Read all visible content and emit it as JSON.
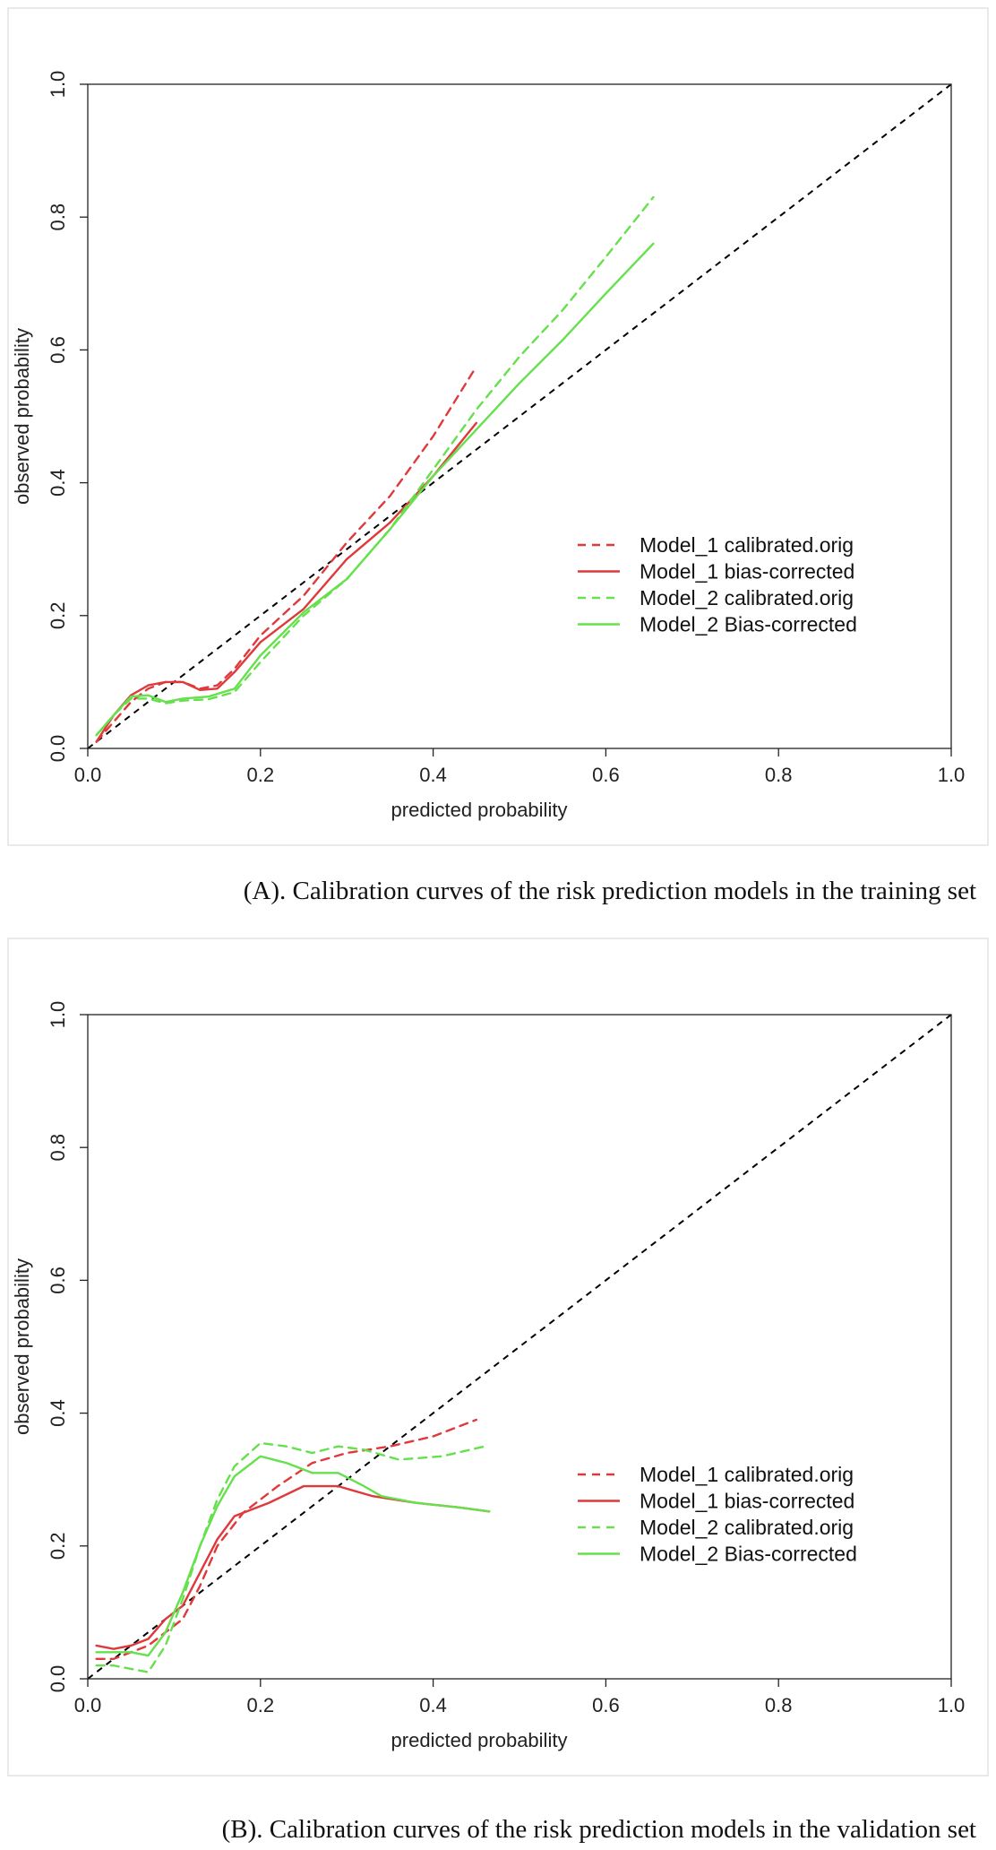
{
  "chart_data": [
    {
      "type": "line",
      "panel": "A",
      "caption": "(A). Calibration curves of the risk prediction models in the training set",
      "xlabel": "predicted probability",
      "ylabel": "observed probability",
      "xlim": [
        0,
        1
      ],
      "ylim": [
        0,
        1
      ],
      "xticks": [
        "0.0",
        "0.2",
        "0.4",
        "0.6",
        "0.8",
        "1.0"
      ],
      "yticks": [
        "0.0",
        "0.2",
        "0.4",
        "0.6",
        "0.8",
        "1.0"
      ],
      "legend_position": "right",
      "reference": {
        "name": "ideal",
        "color": "#000000",
        "dash": true,
        "points": [
          [
            0,
            0
          ],
          [
            1,
            1
          ]
        ]
      },
      "series": [
        {
          "name": "Model_1 calibrated.orig",
          "color": "#e0393b",
          "dash": true,
          "points": [
            [
              0.01,
              0.01
            ],
            [
              0.03,
              0.04
            ],
            [
              0.05,
              0.07
            ],
            [
              0.07,
              0.09
            ],
            [
              0.09,
              0.1
            ],
            [
              0.11,
              0.1
            ],
            [
              0.13,
              0.09
            ],
            [
              0.15,
              0.095
            ],
            [
              0.17,
              0.12
            ],
            [
              0.2,
              0.17
            ],
            [
              0.25,
              0.23
            ],
            [
              0.3,
              0.31
            ],
            [
              0.35,
              0.38
            ],
            [
              0.4,
              0.47
            ],
            [
              0.45,
              0.575
            ]
          ]
        },
        {
          "name": "Model_1 bias-corrected",
          "color": "#e0393b",
          "dash": false,
          "points": [
            [
              0.01,
              0.01
            ],
            [
              0.03,
              0.05
            ],
            [
              0.05,
              0.08
            ],
            [
              0.07,
              0.095
            ],
            [
              0.09,
              0.1
            ],
            [
              0.11,
              0.1
            ],
            [
              0.13,
              0.088
            ],
            [
              0.15,
              0.09
            ],
            [
              0.17,
              0.115
            ],
            [
              0.2,
              0.16
            ],
            [
              0.25,
              0.21
            ],
            [
              0.3,
              0.285
            ],
            [
              0.35,
              0.34
            ],
            [
              0.4,
              0.41
            ],
            [
              0.45,
              0.49
            ]
          ]
        },
        {
          "name": "Model_2 calibrated.orig",
          "color": "#66e04d",
          "dash": true,
          "points": [
            [
              0.01,
              0.02
            ],
            [
              0.03,
              0.05
            ],
            [
              0.05,
              0.075
            ],
            [
              0.07,
              0.075
            ],
            [
              0.09,
              0.068
            ],
            [
              0.11,
              0.072
            ],
            [
              0.14,
              0.074
            ],
            [
              0.17,
              0.085
            ],
            [
              0.2,
              0.13
            ],
            [
              0.25,
              0.2
            ],
            [
              0.3,
              0.255
            ],
            [
              0.35,
              0.33
            ],
            [
              0.4,
              0.42
            ],
            [
              0.45,
              0.51
            ],
            [
              0.5,
              0.59
            ],
            [
              0.55,
              0.66
            ],
            [
              0.6,
              0.74
            ],
            [
              0.655,
              0.83
            ]
          ]
        },
        {
          "name": "Model_2 Bias-corrected",
          "color": "#66e04d",
          "dash": false,
          "points": [
            [
              0.01,
              0.02
            ],
            [
              0.03,
              0.05
            ],
            [
              0.05,
              0.078
            ],
            [
              0.07,
              0.08
            ],
            [
              0.09,
              0.07
            ],
            [
              0.11,
              0.075
            ],
            [
              0.14,
              0.078
            ],
            [
              0.17,
              0.09
            ],
            [
              0.2,
              0.14
            ],
            [
              0.25,
              0.205
            ],
            [
              0.3,
              0.255
            ],
            [
              0.35,
              0.33
            ],
            [
              0.4,
              0.41
            ],
            [
              0.45,
              0.48
            ],
            [
              0.5,
              0.55
            ],
            [
              0.55,
              0.615
            ],
            [
              0.6,
              0.685
            ],
            [
              0.655,
              0.76
            ]
          ]
        }
      ]
    },
    {
      "type": "line",
      "panel": "B",
      "caption": "(B). Calibration curves of the risk prediction models in the validation set",
      "xlabel": "predicted probability",
      "ylabel": "observed probability",
      "xlim": [
        0,
        1
      ],
      "ylim": [
        0,
        1
      ],
      "xticks": [
        "0.0",
        "0.2",
        "0.4",
        "0.6",
        "0.8",
        "1.0"
      ],
      "yticks": [
        "0.0",
        "0.2",
        "0.4",
        "0.6",
        "0.8",
        "1.0"
      ],
      "legend_position": "right",
      "reference": {
        "name": "ideal",
        "color": "#000000",
        "dash": true,
        "points": [
          [
            0,
            0
          ],
          [
            1,
            1
          ]
        ]
      },
      "series": [
        {
          "name": "Model_1 calibrated.orig",
          "color": "#e0393b",
          "dash": true,
          "points": [
            [
              0.01,
              0.03
            ],
            [
              0.03,
              0.03
            ],
            [
              0.05,
              0.04
            ],
            [
              0.07,
              0.05
            ],
            [
              0.09,
              0.07
            ],
            [
              0.11,
              0.09
            ],
            [
              0.13,
              0.14
            ],
            [
              0.15,
              0.2
            ],
            [
              0.18,
              0.25
            ],
            [
              0.22,
              0.29
            ],
            [
              0.26,
              0.325
            ],
            [
              0.3,
              0.34
            ],
            [
              0.35,
              0.35
            ],
            [
              0.4,
              0.365
            ],
            [
              0.45,
              0.39
            ]
          ]
        },
        {
          "name": "Model_1 bias-corrected",
          "color": "#e0393b",
          "dash": false,
          "points": [
            [
              0.01,
              0.05
            ],
            [
              0.03,
              0.045
            ],
            [
              0.05,
              0.05
            ],
            [
              0.07,
              0.06
            ],
            [
              0.09,
              0.09
            ],
            [
              0.11,
              0.11
            ],
            [
              0.13,
              0.16
            ],
            [
              0.15,
              0.21
            ],
            [
              0.17,
              0.245
            ],
            [
              0.21,
              0.265
            ],
            [
              0.25,
              0.29
            ],
            [
              0.29,
              0.29
            ],
            [
              0.33,
              0.275
            ],
            [
              0.38,
              0.265
            ],
            [
              0.43,
              0.258
            ],
            [
              0.465,
              0.252
            ]
          ]
        },
        {
          "name": "Model_2 calibrated.orig",
          "color": "#66e04d",
          "dash": true,
          "points": [
            [
              0.01,
              0.02
            ],
            [
              0.03,
              0.02
            ],
            [
              0.05,
              0.015
            ],
            [
              0.07,
              0.01
            ],
            [
              0.09,
              0.05
            ],
            [
              0.11,
              0.12
            ],
            [
              0.13,
              0.2
            ],
            [
              0.15,
              0.27
            ],
            [
              0.17,
              0.32
            ],
            [
              0.2,
              0.355
            ],
            [
              0.23,
              0.35
            ],
            [
              0.26,
              0.34
            ],
            [
              0.29,
              0.35
            ],
            [
              0.32,
              0.345
            ],
            [
              0.36,
              0.33
            ],
            [
              0.41,
              0.335
            ],
            [
              0.46,
              0.35
            ]
          ]
        },
        {
          "name": "Model_2 Bias-corrected",
          "color": "#66e04d",
          "dash": false,
          "points": [
            [
              0.01,
              0.04
            ],
            [
              0.03,
              0.04
            ],
            [
              0.05,
              0.04
            ],
            [
              0.07,
              0.035
            ],
            [
              0.09,
              0.07
            ],
            [
              0.11,
              0.13
            ],
            [
              0.13,
              0.2
            ],
            [
              0.15,
              0.26
            ],
            [
              0.17,
              0.305
            ],
            [
              0.2,
              0.335
            ],
            [
              0.23,
              0.325
            ],
            [
              0.26,
              0.31
            ],
            [
              0.29,
              0.31
            ],
            [
              0.32,
              0.29
            ],
            [
              0.34,
              0.275
            ],
            [
              0.38,
              0.265
            ],
            [
              0.43,
              0.258
            ],
            [
              0.465,
              0.252
            ]
          ]
        }
      ]
    }
  ]
}
